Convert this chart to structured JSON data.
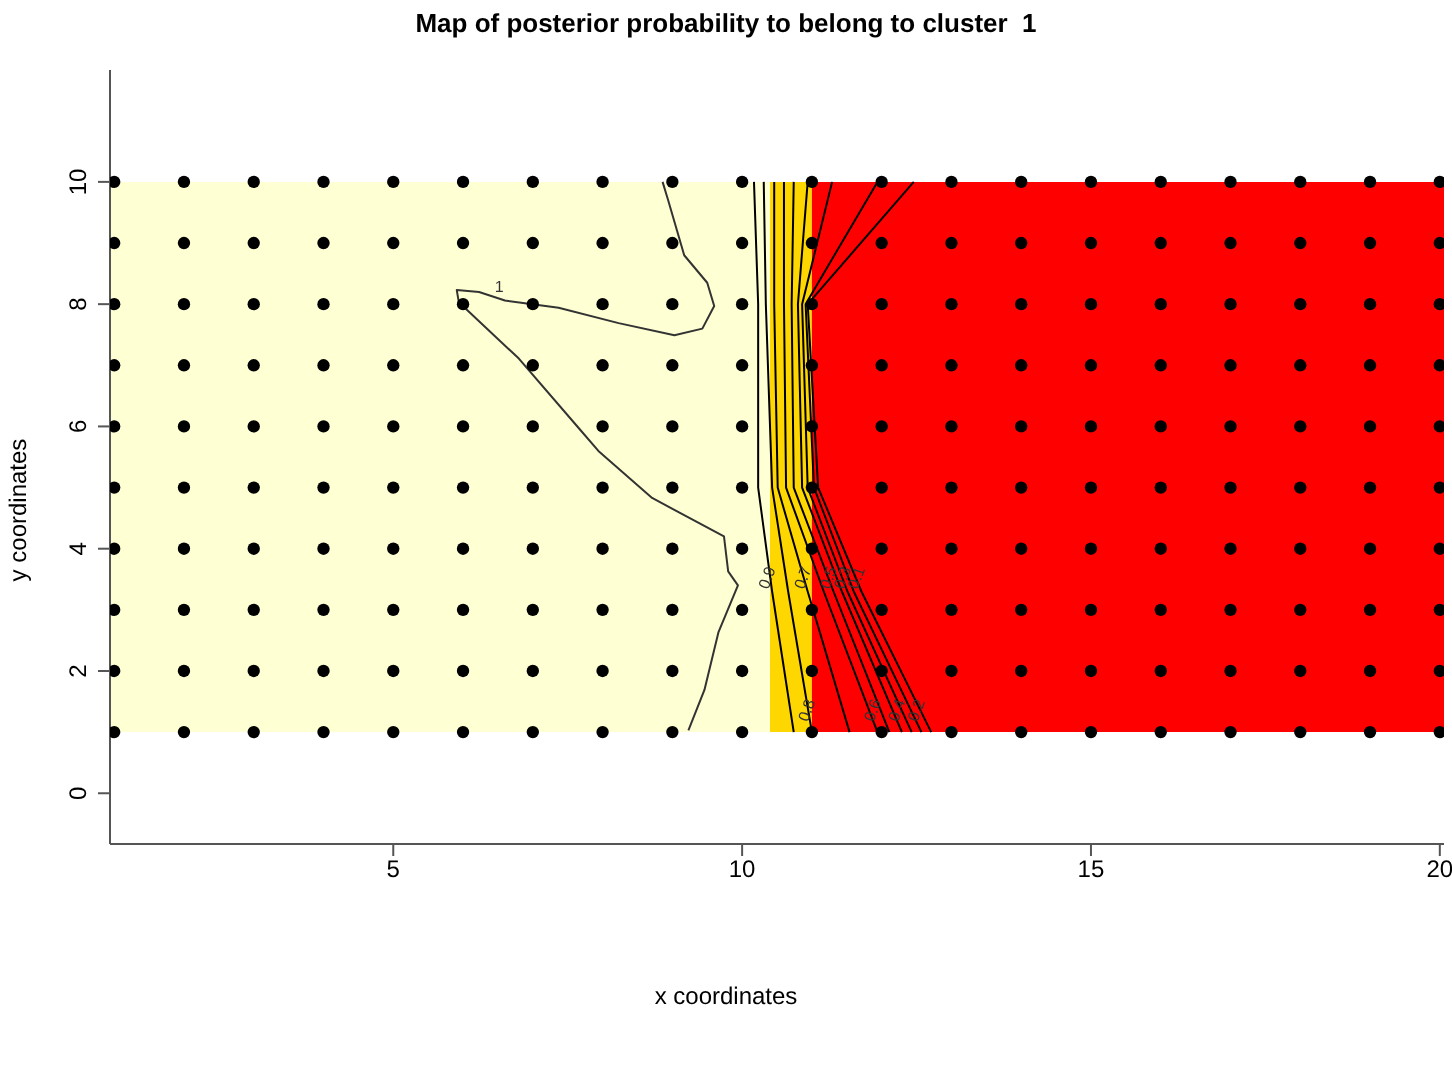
{
  "chart_data": {
    "type": "scatter",
    "title": "Map of posterior probability to belong to cluster  1",
    "xlabel": "x coordinates",
    "ylabel": "y coordinates",
    "xlim": [
      0.94,
      20.06
    ],
    "ylim": [
      -0.83,
      11.83
    ],
    "xticks": [
      5,
      10,
      15,
      20
    ],
    "yticks": [
      0,
      2,
      4,
      6,
      8,
      10
    ],
    "bands": [
      {
        "axis": "x",
        "from": 0.94,
        "to": 10.4,
        "color": "#ffffd4"
      },
      {
        "axis": "x",
        "from": 10.4,
        "to": 11,
        "color": "#ffd700"
      },
      {
        "axis": "x",
        "from": 11,
        "to": 20.06,
        "color": "#ff0000"
      }
    ],
    "series": [
      {
        "marker": "circle",
        "color": "#000000",
        "x": [
          1,
          2,
          3,
          4,
          5,
          6,
          7,
          8,
          9,
          10,
          11,
          12,
          13,
          14,
          15,
          16,
          17,
          18,
          19,
          20
        ],
        "values": [
          1,
          1,
          1,
          1,
          1,
          1,
          1,
          1,
          1,
          1,
          1,
          1,
          1,
          1,
          1,
          1,
          1,
          1,
          1,
          1
        ]
      },
      {
        "marker": "circle",
        "color": "#000000",
        "x": [
          1,
          2,
          3,
          4,
          5,
          6,
          7,
          8,
          9,
          10,
          11,
          12,
          13,
          14,
          15,
          16,
          17,
          18,
          19,
          20
        ],
        "values": [
          2,
          2,
          2,
          2,
          2,
          2,
          2,
          2,
          2,
          2,
          2,
          2,
          2,
          2,
          2,
          2,
          2,
          2,
          2,
          2
        ]
      },
      {
        "marker": "circle",
        "color": "#000000",
        "x": [
          1,
          2,
          3,
          4,
          5,
          6,
          7,
          8,
          9,
          10,
          11,
          12,
          13,
          14,
          15,
          16,
          17,
          18,
          19,
          20
        ],
        "values": [
          3,
          3,
          3,
          3,
          3,
          3,
          3,
          3,
          3,
          3,
          3,
          3,
          3,
          3,
          3,
          3,
          3,
          3,
          3,
          3
        ]
      },
      {
        "marker": "circle",
        "color": "#000000",
        "x": [
          1,
          2,
          3,
          4,
          5,
          6,
          7,
          8,
          9,
          10,
          11,
          12,
          13,
          14,
          15,
          16,
          17,
          18,
          19,
          20
        ],
        "values": [
          4,
          4,
          4,
          4,
          4,
          4,
          4,
          4,
          4,
          4,
          4,
          4,
          4,
          4,
          4,
          4,
          4,
          4,
          4,
          4
        ]
      },
      {
        "marker": "circle",
        "color": "#000000",
        "x": [
          1,
          2,
          3,
          4,
          5,
          6,
          7,
          8,
          9,
          10,
          11,
          12,
          13,
          14,
          15,
          16,
          17,
          18,
          19,
          20
        ],
        "values": [
          5,
          5,
          5,
          5,
          5,
          5,
          5,
          5,
          5,
          5,
          5,
          5,
          5,
          5,
          5,
          5,
          5,
          5,
          5,
          5
        ]
      },
      {
        "marker": "circle",
        "color": "#000000",
        "x": [
          1,
          2,
          3,
          4,
          5,
          6,
          7,
          8,
          9,
          10,
          11,
          12,
          13,
          14,
          15,
          16,
          17,
          18,
          19,
          20
        ],
        "values": [
          6,
          6,
          6,
          6,
          6,
          6,
          6,
          6,
          6,
          6,
          6,
          6,
          6,
          6,
          6,
          6,
          6,
          6,
          6,
          6
        ]
      },
      {
        "marker": "circle",
        "color": "#000000",
        "x": [
          1,
          2,
          3,
          4,
          5,
          6,
          7,
          8,
          9,
          10,
          11,
          12,
          13,
          14,
          15,
          16,
          17,
          18,
          19,
          20
        ],
        "values": [
          7,
          7,
          7,
          7,
          7,
          7,
          7,
          7,
          7,
          7,
          7,
          7,
          7,
          7,
          7,
          7,
          7,
          7,
          7,
          7
        ]
      },
      {
        "marker": "circle",
        "color": "#000000",
        "x": [
          1,
          2,
          3,
          4,
          5,
          6,
          7,
          8,
          9,
          10,
          11,
          12,
          13,
          14,
          15,
          16,
          17,
          18,
          19,
          20
        ],
        "values": [
          8,
          8,
          8,
          8,
          8,
          8,
          8,
          8,
          8,
          8,
          8,
          8,
          8,
          8,
          8,
          8,
          8,
          8,
          8,
          8
        ]
      },
      {
        "marker": "circle",
        "color": "#000000",
        "x": [
          1,
          2,
          3,
          4,
          5,
          6,
          7,
          8,
          9,
          10,
          11,
          12,
          13,
          14,
          15,
          16,
          17,
          18,
          19,
          20
        ],
        "values": [
          9,
          9,
          9,
          9,
          9,
          9,
          9,
          9,
          9,
          9,
          9,
          9,
          9,
          9,
          9,
          9,
          9,
          9,
          9,
          9
        ]
      },
      {
        "marker": "circle",
        "color": "#000000",
        "x": [
          1,
          2,
          3,
          4,
          5,
          6,
          7,
          8,
          9,
          10,
          11,
          12,
          13,
          14,
          15,
          16,
          17,
          18,
          19,
          20
        ],
        "values": [
          10,
          10,
          10,
          10,
          10,
          10,
          10,
          10,
          10,
          10,
          10,
          10,
          10,
          10,
          10,
          10,
          10,
          10,
          10,
          10
        ]
      },
      {
        "type": "line",
        "marker": "none",
        "name": "1",
        "color": "#333333",
        "x": [
          8.86,
          8.94,
          9.17,
          9.5,
          9.6,
          9.43,
          9.03,
          8.23,
          7.37,
          6.6,
          6.23,
          5.91,
          5.94,
          6.8,
          7.66,
          7.94,
          8.71,
          9.74,
          9.8,
          9.94,
          9.66,
          9.46,
          9.23
        ],
        "values": [
          10,
          9.7,
          8.8,
          8.35,
          7.97,
          7.6,
          7.49,
          7.69,
          7.94,
          8.06,
          8.2,
          8.23,
          8.03,
          7.11,
          5.97,
          5.6,
          4.83,
          4.2,
          3.63,
          3.4,
          2.63,
          1.69,
          1.03
        ]
      },
      {
        "type": "line",
        "marker": "none",
        "name": "0.9",
        "color": "#000000",
        "x": [
          10.17,
          10.23,
          10.23,
          10.43,
          10.74
        ],
        "values": [
          10,
          8,
          5,
          3.3,
          1
        ]
      },
      {
        "type": "line",
        "marker": "none",
        "name": "0.8",
        "color": "#000000",
        "x": [
          10.31,
          10.34,
          10.43,
          10.66,
          11.0
        ],
        "values": [
          10,
          8,
          5,
          3.3,
          1
        ]
      },
      {
        "type": "line",
        "marker": "none",
        "name": "0.7",
        "color": "#000000",
        "x": [
          10.46,
          10.46,
          10.51,
          10.94,
          11.54
        ],
        "values": [
          10,
          8,
          5,
          3.3,
          1
        ]
      },
      {
        "type": "line",
        "marker": "none",
        "name": "0.6",
        "color": "#000000",
        "x": [
          10.6,
          10.6,
          10.63,
          11.17,
          11.94
        ],
        "values": [
          10,
          8,
          5,
          3.3,
          1
        ]
      },
      {
        "type": "line",
        "marker": "none",
        "name": "0.5",
        "color": "#000000",
        "x": [
          10.74,
          10.71,
          10.74,
          11.31,
          12.11
        ],
        "values": [
          10,
          8,
          5,
          3.3,
          1
        ]
      },
      {
        "type": "line",
        "marker": "none",
        "name": "0.4",
        "color": "#000000",
        "x": [
          10.94,
          10.8,
          10.86,
          11.43,
          12.29
        ],
        "values": [
          10,
          8,
          5,
          3.3,
          1
        ]
      },
      {
        "type": "line",
        "marker": "none",
        "name": "0.3",
        "color": "#000000",
        "x": [
          11.29,
          10.86,
          10.94,
          11.51,
          12.43
        ],
        "values": [
          10,
          8,
          5,
          3.3,
          1
        ]
      },
      {
        "type": "line",
        "marker": "none",
        "name": "0.2",
        "color": "#000000",
        "x": [
          11.94,
          10.91,
          11.03,
          11.6,
          12.57
        ],
        "values": [
          10,
          8,
          5,
          3.3,
          1
        ]
      },
      {
        "type": "line",
        "marker": "none",
        "name": "0.1",
        "color": "#000000",
        "x": [
          12.46,
          10.94,
          11.09,
          11.71,
          12.71
        ],
        "values": [
          10,
          8,
          5,
          3.3,
          1
        ]
      }
    ]
  }
}
